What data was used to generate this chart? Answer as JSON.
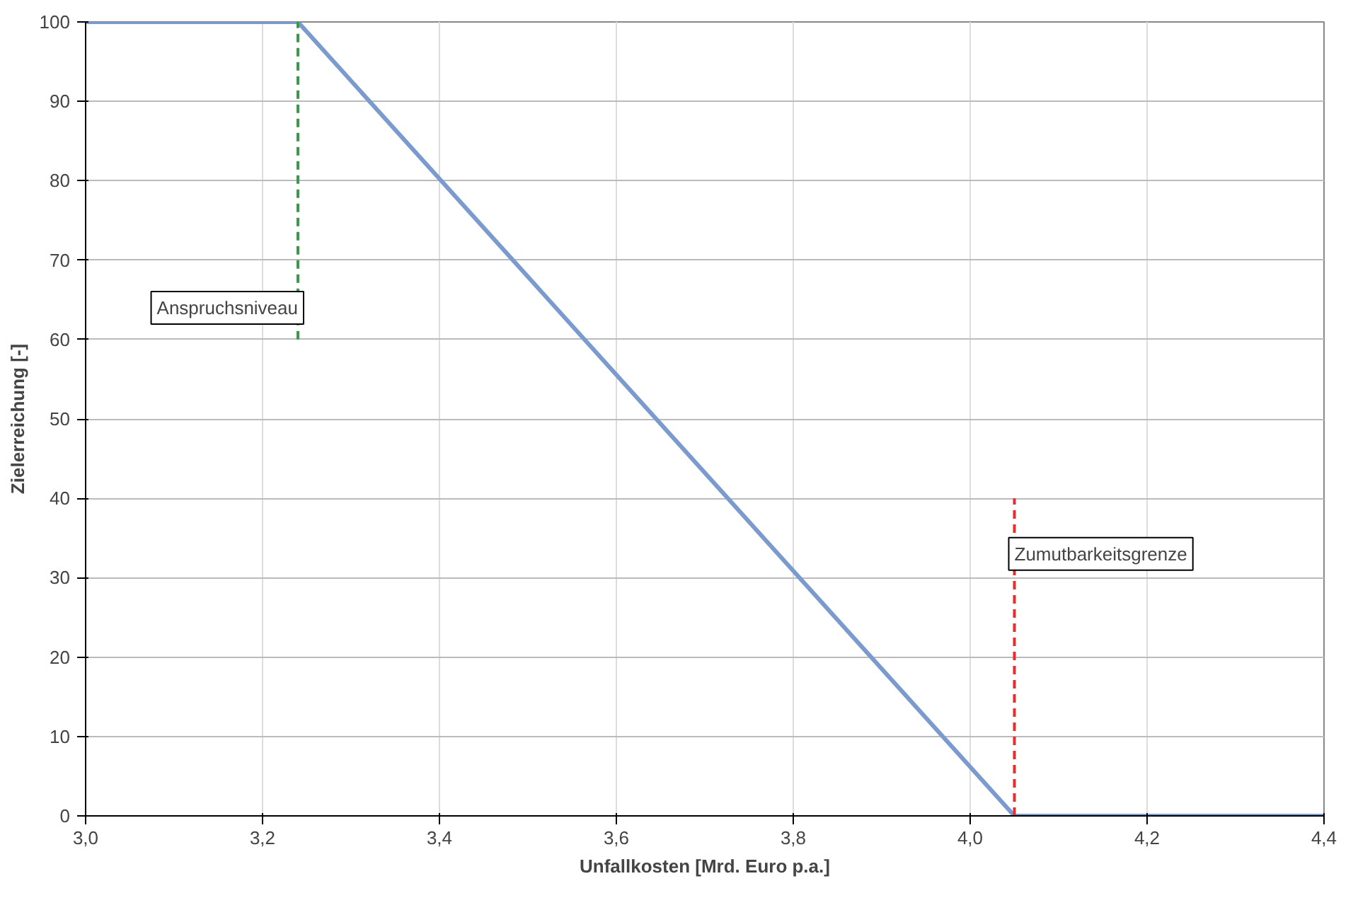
{
  "chart_data": {
    "type": "line",
    "xlabel": "Unfallkosten [Mrd. Euro p.a.]",
    "ylabel": "Zielerreichung [-]",
    "xlim": [
      3.0,
      4.4
    ],
    "ylim": [
      0,
      100
    ],
    "xticks": [
      {
        "value": 3.0,
        "label": "3,0"
      },
      {
        "value": 3.2,
        "label": "3,2"
      },
      {
        "value": 3.4,
        "label": "3,4"
      },
      {
        "value": 3.6,
        "label": "3,6"
      },
      {
        "value": 3.8,
        "label": "3,8"
      },
      {
        "value": 4.0,
        "label": "4,0"
      },
      {
        "value": 4.2,
        "label": "4,2"
      },
      {
        "value": 4.4,
        "label": "4,4"
      }
    ],
    "yticks": [
      0,
      10,
      20,
      30,
      40,
      50,
      60,
      70,
      80,
      90,
      100
    ],
    "grid": true,
    "line_style": "solid",
    "marker": "none",
    "series": [
      {
        "x": [
          3.0,
          3.24,
          4.05,
          4.4
        ],
        "values": [
          100,
          100,
          0,
          0
        ],
        "color": "#7b9bcf"
      },
      {
        "x": [
          3.24,
          3.24
        ],
        "values": [
          60,
          100
        ],
        "color": "#3a9a4a",
        "line_style": "dashed"
      },
      {
        "x": [
          4.05,
          4.05
        ],
        "values": [
          0,
          40
        ],
        "color": "#e03030",
        "line_style": "dashed"
      }
    ],
    "annotations": [
      "Anspruchsniveau",
      "Zumutbarkeitsgrenze"
    ]
  }
}
